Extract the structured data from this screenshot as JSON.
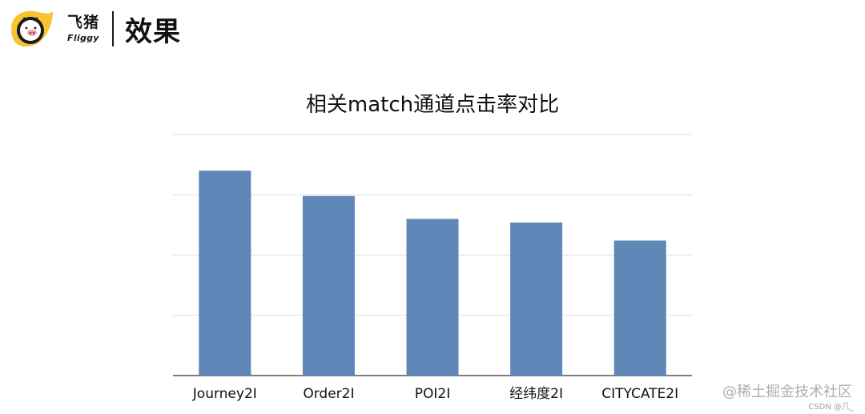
{
  "header": {
    "logo_icon": "fliggy-pig-logo-icon",
    "brand_cn": "飞猪",
    "brand_en": "Fliggy",
    "title": "效果"
  },
  "colors": {
    "bar": "#5f87b7",
    "grid": "#dddddd",
    "axis": "#555555",
    "logo_yellow": "#f7c531",
    "logo_black": "#1a1a1a",
    "logo_pink": "#f4a0a8"
  },
  "chart_data": {
    "type": "bar",
    "title": "相关match通道点击率对比",
    "categories": [
      "Journey2I",
      "Order2I",
      "POI2I",
      "经纬度2I",
      "CITYCATE2I"
    ],
    "values": [
      3.4,
      2.98,
      2.6,
      2.54,
      2.24
    ],
    "ylim": [
      0,
      4
    ],
    "xlabel": "",
    "ylabel": "",
    "grid": true,
    "legend": "none"
  },
  "watermark": {
    "main": "@稀土掘金技术社区",
    "sub": "CSDN @几_"
  }
}
